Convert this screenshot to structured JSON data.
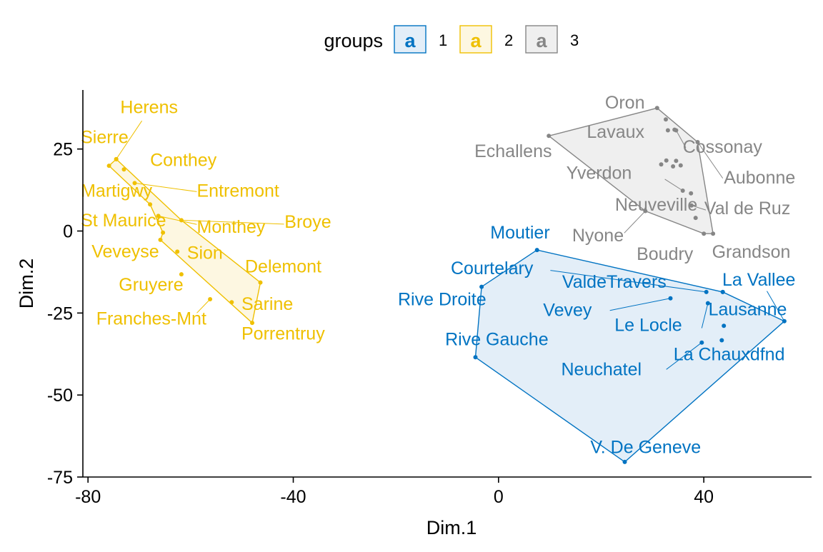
{
  "chart_data": {
    "type": "scatter",
    "xlabel": "Dim.1",
    "ylabel": "Dim.2",
    "xlim": [
      -81,
      61
    ],
    "ylim": [
      -75,
      43
    ],
    "xticks": [
      -80,
      -40,
      0,
      40
    ],
    "yticks": [
      25,
      0,
      -25,
      -50,
      -75
    ],
    "grid": false,
    "legend": {
      "title": "groups",
      "position": "top",
      "entries": [
        {
          "label": "1",
          "glyph": "a",
          "color": "#0073C2",
          "fill": "#E3EEF8"
        },
        {
          "label": "2",
          "glyph": "a",
          "color": "#EFC000",
          "fill": "#FDF7E1"
        },
        {
          "label": "3",
          "glyph": "a",
          "color": "#868686",
          "fill": "#EFEFEF"
        }
      ]
    },
    "groups": [
      {
        "id": "1",
        "color": "#0073C2",
        "fill": "#E3EEF8",
        "hull": [
          "Moutier",
          "La Vallee",
          "Lausanne",
          "V. De Geneve",
          "Rive Gauche",
          "Rive Droite"
        ],
        "points": [
          {
            "name": "Moutier",
            "x": 7.5,
            "y": -5.8
          },
          {
            "name": "Courtelary",
            "x": 40.5,
            "y": -18.6
          },
          {
            "name": "La Vallee",
            "x": 43.7,
            "y": -18.6
          },
          {
            "name": "ValdeTravers",
            "x": 43.7,
            "y": -18.6
          },
          {
            "name": "Lausanne",
            "x": 55.7,
            "y": -27.5
          },
          {
            "name": "Vevey",
            "x": 33.5,
            "y": -20.5
          },
          {
            "name": "Le Locle",
            "x": 40.8,
            "y": -22.0
          },
          {
            "name": "Neuchatel",
            "x": 39.6,
            "y": -34.0
          },
          {
            "name": "La Chauxdfnd",
            "x": 43.5,
            "y": -33.3
          },
          {
            "name": "Vevey-2",
            "x": 43.9,
            "y": -28.9,
            "label": ""
          },
          {
            "name": "Rive Droite",
            "x": -3.3,
            "y": -17.0
          },
          {
            "name": "Rive Gauche",
            "x": -4.5,
            "y": -38.5
          },
          {
            "name": "V. De Geneve",
            "x": 24.6,
            "y": -70.4
          }
        ]
      },
      {
        "id": "2",
        "color": "#EFC000",
        "fill": "#FDF7E1",
        "hull": [
          "Sierre",
          "Broye",
          "Delemont",
          "Porrentruy",
          "Veveyse",
          "Monthey",
          "Martigwy",
          "Conthey-2"
        ],
        "points": [
          {
            "name": "Herens",
            "x": -74.5,
            "y": 21.9
          },
          {
            "name": "Sierre",
            "x": -74.5,
            "y": 21.9
          },
          {
            "name": "Conthey",
            "x": -73.0,
            "y": 18.8
          },
          {
            "name": "Conthey-2",
            "x": -75.9,
            "y": 19.9,
            "label": ""
          },
          {
            "name": "Entremont",
            "x": -70.9,
            "y": 14.6
          },
          {
            "name": "Martigwy",
            "x": -67.9,
            "y": 8.1
          },
          {
            "name": "St Maurice",
            "x": -66.3,
            "y": 4.6
          },
          {
            "name": "Broye",
            "x": -61.8,
            "y": 3.3
          },
          {
            "name": "Monthey",
            "x": -65.4,
            "y": -0.5
          },
          {
            "name": "Veveyse",
            "x": -65.9,
            "y": -2.7
          },
          {
            "name": "Sion",
            "x": -62.6,
            "y": -6.3
          },
          {
            "name": "Gruyere",
            "x": -61.8,
            "y": -13.2
          },
          {
            "name": "Delemont",
            "x": -46.4,
            "y": -15.7
          },
          {
            "name": "Franches-Mnt",
            "x": -56.2,
            "y": -20.8
          },
          {
            "name": "Sarine",
            "x": -52.0,
            "y": -21.7
          },
          {
            "name": "Porrentruy",
            "x": -48.0,
            "y": -28.0
          }
        ]
      },
      {
        "id": "3",
        "color": "#868686",
        "fill": "#EFEFEF",
        "hull": [
          "Oron",
          "Aubonne",
          "Grandson",
          "Boudry",
          "Nyone",
          "Echallens"
        ],
        "points": [
          {
            "name": "Oron",
            "x": 30.9,
            "y": 37.5
          },
          {
            "name": "Lavaux",
            "x": 32.6,
            "y": 34.0
          },
          {
            "name": "Cossonay",
            "x": 33.0,
            "y": 30.7
          },
          {
            "name": "Cossonay-2",
            "x": 34.3,
            "y": 30.9,
            "label": ""
          },
          {
            "name": "Cossonay-3",
            "x": 34.6,
            "y": 30.7,
            "label": ""
          },
          {
            "name": "Echallens",
            "x": 9.8,
            "y": 29.0
          },
          {
            "name": "Aubonne",
            "x": 38.8,
            "y": 27.1
          },
          {
            "name": "Yverdon",
            "x": 32.7,
            "y": 21.5
          },
          {
            "name": "Yverdon-2",
            "x": 31.7,
            "y": 20.3,
            "label": ""
          },
          {
            "name": "Yverdon-3",
            "x": 34.6,
            "y": 21.4,
            "label": ""
          },
          {
            "name": "Yverdon-4",
            "x": 34.0,
            "y": 19.7,
            "label": ""
          },
          {
            "name": "Yverdon-5",
            "x": 35.5,
            "y": 20.0,
            "label": ""
          },
          {
            "name": "Val de Ruz",
            "x": 37.5,
            "y": 11.5
          },
          {
            "name": "Neuveville",
            "x": 35.9,
            "y": 12.3
          },
          {
            "name": "Neuveville-2",
            "x": 37.6,
            "y": 7.8,
            "label": ""
          },
          {
            "name": "Neuveville-3",
            "x": 38.4,
            "y": 4.0,
            "label": ""
          },
          {
            "name": "Nyone",
            "x": 28.6,
            "y": 6.1
          },
          {
            "name": "Boudry",
            "x": 40.0,
            "y": -0.8
          },
          {
            "name": "Grandson",
            "x": 41.8,
            "y": -0.8
          }
        ]
      }
    ],
    "labels": [
      {
        "text": "Herens",
        "group": "2",
        "x": -73.7,
        "y": 35.9,
        "anchor": "start",
        "point": "Herens"
      },
      {
        "text": "Sierre",
        "group": "2",
        "x": -81.4,
        "y": 26.8,
        "anchor": "start",
        "point": "Sierre"
      },
      {
        "text": "Conthey",
        "group": "2",
        "x": -67.9,
        "y": 19.8,
        "anchor": "start",
        "point": "Conthey"
      },
      {
        "text": "Entremont",
        "group": "2",
        "x": -58.8,
        "y": 10.5,
        "anchor": "start",
        "point": "Entremont"
      },
      {
        "text": "Martigwy",
        "group": "2",
        "x": -81.4,
        "y": 10.5,
        "anchor": "start",
        "point": "Martigwy"
      },
      {
        "text": "St Maurice",
        "group": "2",
        "x": -81.4,
        "y": 1.4,
        "anchor": "start",
        "point": "St Maurice"
      },
      {
        "text": "Monthey",
        "group": "2",
        "x": -58.8,
        "y": -0.5,
        "anchor": "start",
        "point": "Monthey"
      },
      {
        "text": "Broye",
        "group": "2",
        "x": -41.7,
        "y": 1.0,
        "anchor": "start",
        "point": "Broye"
      },
      {
        "text": "Veveyse",
        "group": "2",
        "x": -79.3,
        "y": -8.1,
        "anchor": "start",
        "point": "Veveyse"
      },
      {
        "text": "Sion",
        "group": "2",
        "x": -60.7,
        "y": -8.5,
        "anchor": "start",
        "point": "Sion"
      },
      {
        "text": "Delemont",
        "group": "2",
        "x": -49.4,
        "y": -12.6,
        "anchor": "start",
        "point": "Delemont"
      },
      {
        "text": "Gruyere",
        "group": "2",
        "x": -74.0,
        "y": -18.2,
        "anchor": "start",
        "point": "Gruyere"
      },
      {
        "text": "Sarine",
        "group": "2",
        "x": -50.1,
        "y": -24.1,
        "anchor": "start",
        "point": "Sarine"
      },
      {
        "text": "Franches-Mnt",
        "group": "2",
        "x": -78.4,
        "y": -28.5,
        "anchor": "start",
        "point": "Franches-Mnt"
      },
      {
        "text": "Porrentruy",
        "group": "2",
        "x": -50.1,
        "y": -33.1,
        "anchor": "start",
        "point": "Porrentruy"
      },
      {
        "text": "Oron",
        "group": "3",
        "x": 28.5,
        "y": 37.3,
        "anchor": "end",
        "point": "Oron"
      },
      {
        "text": "Lavaux",
        "group": "3",
        "x": 17.2,
        "y": 28.4,
        "anchor": "start",
        "point": "Lavaux"
      },
      {
        "text": "Cossonay",
        "group": "3",
        "x": 35.9,
        "y": 23.8,
        "anchor": "start",
        "point": "Cossonay"
      },
      {
        "text": "Echallens",
        "group": "3",
        "x": 10.4,
        "y": 22.5,
        "anchor": "end",
        "point": "Echallens"
      },
      {
        "text": "Aubonne",
        "group": "3",
        "x": 43.9,
        "y": 14.5,
        "anchor": "start",
        "point": "Aubonne"
      },
      {
        "text": "Yverdon",
        "group": "3",
        "x": 13.2,
        "y": 15.9,
        "anchor": "start",
        "point": "Yverdon"
      },
      {
        "text": "Neuveville",
        "group": "3",
        "x": 22.7,
        "y": 6.2,
        "anchor": "start",
        "point": "Neuveville"
      },
      {
        "text": "Val de Ruz",
        "group": "3",
        "x": 40.1,
        "y": 5.1,
        "anchor": "start",
        "point": "Val de Ruz"
      },
      {
        "text": "Nyone",
        "group": "3",
        "x": 24.4,
        "y": -3.2,
        "anchor": "end",
        "point": "Nyone"
      },
      {
        "text": "Boudry",
        "group": "3",
        "x": 26.9,
        "y": -8.8,
        "anchor": "start",
        "point": "Boudry"
      },
      {
        "text": "Grandson",
        "group": "3",
        "x": 41.6,
        "y": -8.2,
        "anchor": "start",
        "point": "Grandson"
      },
      {
        "text": "Moutier",
        "group": "1",
        "x": -1.6,
        "y": -2.3,
        "anchor": "start",
        "point": "Moutier"
      },
      {
        "text": "Courtelary",
        "group": "1",
        "x": -9.3,
        "y": -13.2,
        "anchor": "start",
        "point": "Courtelary"
      },
      {
        "text": "ValdeTravers",
        "group": "1",
        "x": 12.4,
        "y": -17.3,
        "anchor": "start",
        "point": "ValdeTravers"
      },
      {
        "text": "La Vallee",
        "group": "1",
        "x": 43.6,
        "y": -16.6,
        "anchor": "start",
        "point": "La Vallee"
      },
      {
        "text": "Rive Droite",
        "group": "1",
        "x": -19.6,
        "y": -22.6,
        "anchor": "start",
        "point": "Rive Droite"
      },
      {
        "text": "Lausanne",
        "group": "1",
        "x": 40.9,
        "y": -25.7,
        "anchor": "start",
        "point": "Lausanne"
      },
      {
        "text": "Vevey",
        "group": "1",
        "x": 8.7,
        "y": -25.9,
        "anchor": "start",
        "point": "Vevey"
      },
      {
        "text": "Le Locle",
        "group": "1",
        "x": 22.6,
        "y": -30.5,
        "anchor": "start",
        "point": "Le Locle"
      },
      {
        "text": "Rive Gauche",
        "group": "1",
        "x": -10.4,
        "y": -34.8,
        "anchor": "start",
        "point": "Rive Gauche"
      },
      {
        "text": "La Chauxdfnd",
        "group": "1",
        "x": 34.1,
        "y": -39.4,
        "anchor": "start",
        "point": "La Chauxdfnd"
      },
      {
        "text": "Neuchatel",
        "group": "1",
        "x": 12.2,
        "y": -44.0,
        "anchor": "start",
        "point": "Neuchatel"
      },
      {
        "text": "V. De Geneve",
        "group": "1",
        "x": 17.9,
        "y": -67.7,
        "anchor": "start",
        "point": "V. De Geneve"
      }
    ],
    "leaders": [
      {
        "group": "2",
        "from": [
          -74.5,
          21.9
        ],
        "to": [
          -69.5,
          33.6
        ]
      },
      {
        "group": "2",
        "from": [
          -70.9,
          14.6
        ],
        "to": [
          -58.8,
          12.0
        ]
      },
      {
        "group": "2",
        "from": [
          -61.8,
          3.3
        ],
        "to": [
          -41.8,
          2.1
        ]
      },
      {
        "group": "2",
        "from": [
          -66.3,
          4.6
        ],
        "to": [
          -58.8,
          2.0
        ]
      },
      {
        "group": "2",
        "from": [
          -56.2,
          -20.8
        ],
        "to": [
          -58.8,
          -25.0
        ]
      },
      {
        "group": "3",
        "from": [
          38.8,
          27.1
        ],
        "to": [
          43.7,
          16.1
        ]
      },
      {
        "group": "3",
        "from": [
          34.6,
          30.7
        ],
        "to": [
          36.5,
          25.4
        ]
      },
      {
        "group": "3",
        "from": [
          35.9,
          12.3
        ],
        "to": [
          32.4,
          15.8
        ]
      },
      {
        "group": "3",
        "from": [
          37.6,
          7.8
        ],
        "to": [
          40.4,
          6.4
        ]
      },
      {
        "group": "3",
        "from": [
          28.6,
          6.1
        ],
        "to": [
          24.5,
          -0.6
        ]
      },
      {
        "group": "1",
        "from": [
          40.5,
          -18.6
        ],
        "to": [
          10.1,
          -12.0
        ]
      },
      {
        "group": "1",
        "from": [
          33.5,
          -20.5
        ],
        "to": [
          21.7,
          -24.2
        ]
      },
      {
        "group": "1",
        "from": [
          40.8,
          -22.0
        ],
        "to": [
          39.6,
          -29.6
        ]
      },
      {
        "group": "1",
        "from": [
          39.6,
          -34.0
        ],
        "to": [
          32.7,
          -42.2
        ]
      },
      {
        "group": "1",
        "from": [
          55.7,
          -27.5
        ],
        "to": [
          52.3,
          -18.3
        ]
      }
    ]
  }
}
